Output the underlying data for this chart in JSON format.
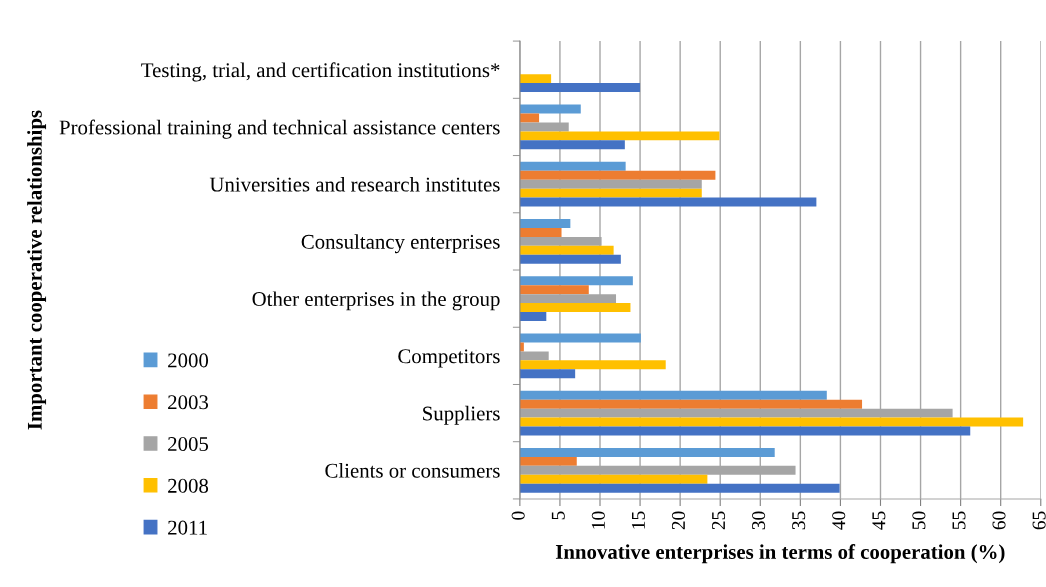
{
  "chart_data": {
    "type": "bar",
    "orientation": "horizontal",
    "xlabel": "Innovative enterprises in terms of cooperation (%)",
    "ylabel": "Important cooperative relationships",
    "categories": [
      "Testing, trial, and certification institutions*",
      "Professional training and technical assistance centers",
      "Universities and research institutes",
      "Consultancy enterprises",
      "Other enterprises in the group",
      "Competitors",
      "Suppliers",
      "Clients or consumers"
    ],
    "series": [
      {
        "name": "2000",
        "color": "#5b9bd5",
        "values": [
          null,
          7.6,
          13.2,
          6.3,
          14.1,
          15.1,
          38.3,
          31.8
        ]
      },
      {
        "name": "2003",
        "color": "#ed7d31",
        "values": [
          null,
          2.4,
          24.4,
          5.2,
          8.6,
          0.5,
          42.7,
          7.1
        ]
      },
      {
        "name": "2005",
        "color": "#a5a5a5",
        "values": [
          null,
          6.1,
          22.7,
          10.2,
          12.0,
          3.6,
          54.0,
          34.4
        ]
      },
      {
        "name": "2008",
        "color": "#ffc000",
        "values": [
          3.9,
          24.9,
          22.7,
          11.7,
          13.8,
          18.2,
          62.8,
          23.4
        ]
      },
      {
        "name": "2011",
        "color": "#4472c4",
        "values": [
          15.0,
          13.1,
          37.0,
          12.6,
          3.3,
          6.9,
          56.2,
          39.9
        ]
      }
    ],
    "xlim": [
      0,
      65
    ],
    "xticks": [
      0,
      5,
      10,
      15,
      20,
      25,
      30,
      35,
      40,
      45,
      50,
      55,
      60,
      65
    ],
    "grid": "x",
    "legend": "left"
  }
}
